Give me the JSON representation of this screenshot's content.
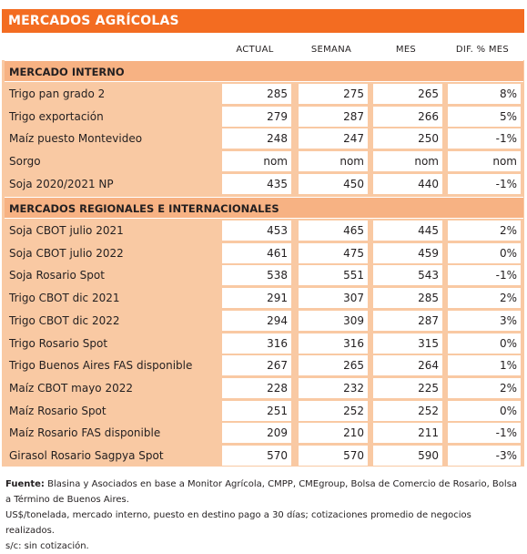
{
  "title": "MERCADOS AGRÍCOLAS",
  "columns": [
    "ACTUAL",
    "SEMANA",
    "MES",
    "DIF. % MES"
  ],
  "sections": [
    {
      "name": "MERCADO INTERNO",
      "rows": [
        {
          "label": "Trigo pan grado 2",
          "values": [
            "285",
            "275",
            "265",
            "8%"
          ]
        },
        {
          "label": "Trigo exportación",
          "values": [
            "279",
            "287",
            "266",
            "5%"
          ]
        },
        {
          "label": "Maíz puesto Montevideo",
          "values": [
            "248",
            "247",
            "250",
            "-1%"
          ]
        },
        {
          "label": "Sorgo",
          "values": [
            "nom",
            "nom",
            "nom",
            "nom"
          ]
        },
        {
          "label": "Soja 2020/2021 NP",
          "values": [
            "435",
            "450",
            "440",
            "-1%"
          ]
        }
      ]
    },
    {
      "name": "MERCADOS REGIONALES E INTERNACIONALES",
      "rows": [
        {
          "label": "Soja CBOT julio 2021",
          "values": [
            "453",
            "465",
            "445",
            "2%"
          ]
        },
        {
          "label": "Soja CBOT julio 2022",
          "values": [
            "461",
            "475",
            "459",
            "0%"
          ]
        },
        {
          "label": "Soja Rosario Spot",
          "values": [
            "538",
            "551",
            "543",
            "-1%"
          ]
        },
        {
          "label": "Trigo CBOT dic 2021",
          "values": [
            "291",
            "307",
            "285",
            "2%"
          ]
        },
        {
          "label": "Trigo CBOT dic 2022",
          "values": [
            "294",
            "309",
            "287",
            "3%"
          ]
        },
        {
          "label": "Trigo Rosario Spot",
          "values": [
            "316",
            "316",
            "315",
            "0%"
          ]
        },
        {
          "label": "Trigo Buenos Aires FAS disponible",
          "values": [
            "267",
            "265",
            "264",
            "1%"
          ]
        },
        {
          "label": "Maíz CBOT mayo 2022",
          "values": [
            "228",
            "232",
            "225",
            "2%"
          ]
        },
        {
          "label": "Maíz Rosario Spot",
          "values": [
            "251",
            "252",
            "252",
            "0%"
          ]
        },
        {
          "label": "Maíz Rosario FAS disponible",
          "values": [
            "209",
            "210",
            "211",
            "-1%"
          ]
        },
        {
          "label": "Girasol Rosario Sagpya Spot",
          "values": [
            "570",
            "570",
            "590",
            "-3%"
          ]
        }
      ]
    }
  ],
  "notes": {
    "source_label": "Fuente:",
    "source_text": " Blasina y Asociados en base a Monitor Agrícola, CMPP, CMEgroup, Bolsa de Comercio de Rosario, Bolsa a Término de Buenos Aires.",
    "line2": "US$/tonelada, mercado interno, puesto en destino pago a 30 días; cotizaciones promedio de negocios realizados.",
    "line3": "s/c: sin cotización."
  },
  "colors": {
    "header": "#f36c21",
    "section": "#f7b283",
    "table_bg": "#f9c9a3",
    "cell": "#ffffff"
  }
}
